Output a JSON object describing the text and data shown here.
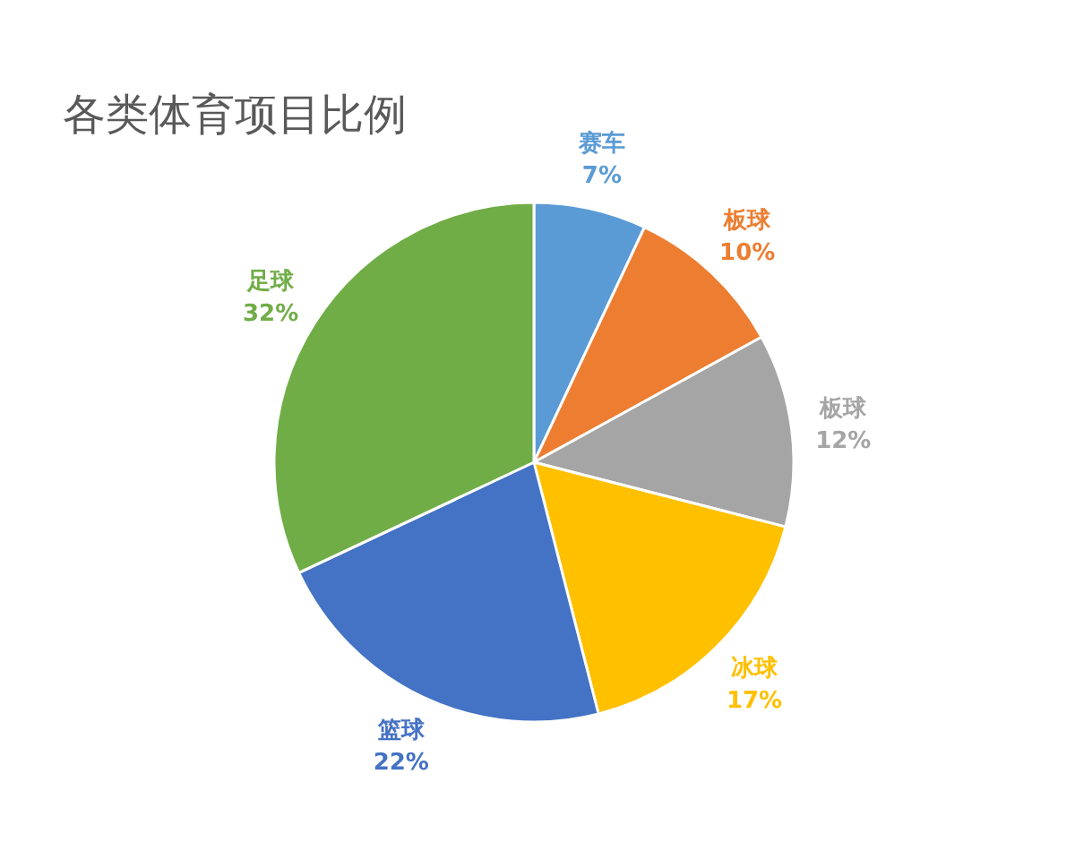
{
  "chart_data": {
    "type": "pie",
    "title": "各类体育项目比例",
    "categories": [
      "赛车",
      "板球",
      "板球",
      "冰球",
      "篮球",
      "足球"
    ],
    "values": [
      7,
      10,
      12,
      17,
      22,
      32
    ],
    "value_labels": [
      "7%",
      "10%",
      "12%",
      "17%",
      "22%",
      "32%"
    ],
    "colors": [
      "#5b9bd5",
      "#ed7d31",
      "#a5a5a5",
      "#ffc000",
      "#4472c4",
      "#70ad47"
    ]
  }
}
